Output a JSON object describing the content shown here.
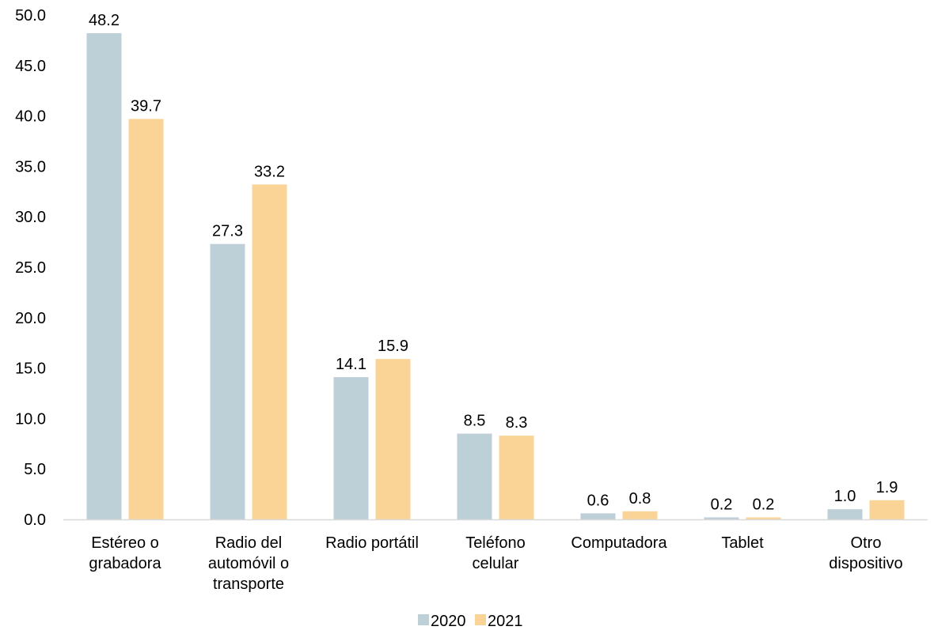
{
  "chart_data": {
    "type": "bar",
    "categories": [
      [
        "Estéreo o",
        "grabadora"
      ],
      [
        "Radio del",
        "automóvil o",
        "transporte"
      ],
      [
        "Radio portátil"
      ],
      [
        "Teléfono",
        "celular"
      ],
      [
        "Computadora"
      ],
      [
        "Tablet"
      ],
      [
        "Otro",
        "dispositivo"
      ]
    ],
    "series": [
      {
        "name": "2020",
        "color": "#BDCFD7",
        "values": [
          48.2,
          27.3,
          14.1,
          8.5,
          0.6,
          0.2,
          1.0
        ],
        "labels": [
          "48.2",
          "27.3",
          "14.1",
          "8.5",
          "0.6",
          "0.2",
          "1.0"
        ]
      },
      {
        "name": "2021",
        "color": "#F9D496",
        "values": [
          39.7,
          33.2,
          15.9,
          8.3,
          0.8,
          0.2,
          1.9
        ],
        "labels": [
          "39.7",
          "33.2",
          "15.9",
          "8.3",
          "0.8",
          "0.2",
          "1.9"
        ]
      }
    ],
    "ylim": [
      0,
      50
    ],
    "yticks": [
      "0.0",
      "5.0",
      "10.0",
      "15.0",
      "20.0",
      "25.0",
      "30.0",
      "35.0",
      "40.0",
      "45.0",
      "50.0"
    ],
    "grid": false,
    "legend": "bottom-center",
    "axis_color": "#D9D9D9"
  }
}
